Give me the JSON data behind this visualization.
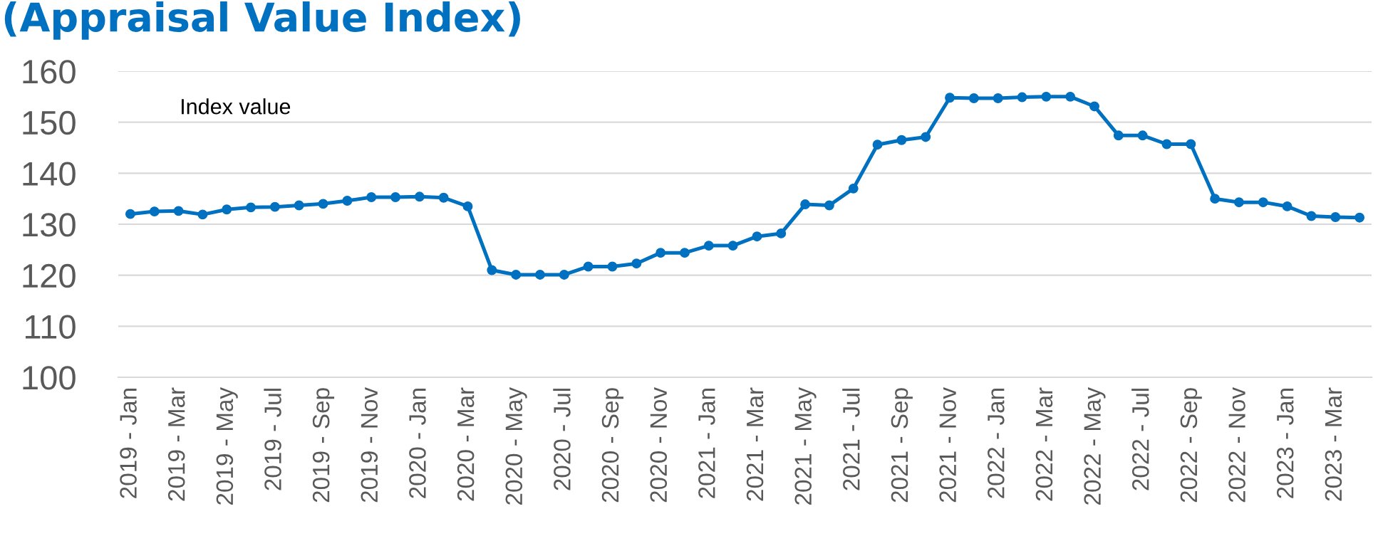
{
  "chart_data": {
    "type": "line",
    "title": "(Appraisal Value Index)",
    "ylabel": "Index value",
    "categories": [
      "2019 - Jan",
      null,
      "2019 - Mar",
      null,
      "2019 - May",
      null,
      "2019 - Jul",
      null,
      "2019 - Sep",
      null,
      "2019 - Nov",
      null,
      "2020 - Jan",
      null,
      "2020 - Mar",
      null,
      "2020 - May",
      null,
      "2020 - Jul",
      null,
      "2020 - Sep",
      null,
      "2020 - Nov",
      null,
      "2021 - Jan",
      null,
      "2021 - Mar",
      null,
      "2021 - May",
      null,
      "2021 - Jul",
      null,
      "2021 - Sep",
      null,
      "2021 - Nov",
      null,
      "2022 - Jan",
      null,
      "2022 - Mar",
      null,
      "2022 - May",
      null,
      "2022 - Jul",
      null,
      "2022 - Sep",
      null,
      "2022 - Nov",
      null,
      "2023 - Jan",
      null,
      "2023 - Mar",
      null
    ],
    "series": [
      {
        "color": "#0070c0",
        "values": [
          132.0,
          132.5,
          132.6,
          131.9,
          132.9,
          133.3,
          133.4,
          133.7,
          134.0,
          134.6,
          135.3,
          135.3,
          135.4,
          135.2,
          133.5,
          121.0,
          120.1,
          120.1,
          120.1,
          121.7,
          121.7,
          122.3,
          124.4,
          124.4,
          125.8,
          125.8,
          127.6,
          128.2,
          133.9,
          133.7,
          137.0,
          145.6,
          146.5,
          147.1,
          154.8,
          154.7,
          154.7,
          154.9,
          155.0,
          155.0,
          153.1,
          147.4,
          147.4,
          145.7,
          145.7,
          135.0,
          134.3,
          134.3,
          133.5,
          131.6,
          131.4,
          131.3
        ]
      }
    ],
    "ylim": [
      100,
      160
    ],
    "yticks": [
      100,
      110,
      120,
      130,
      140,
      150,
      160
    ],
    "grid": "y",
    "marker": "circle",
    "line_style": "solid"
  }
}
